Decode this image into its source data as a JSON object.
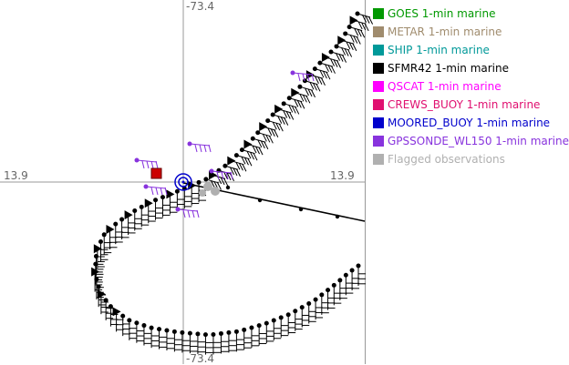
{
  "axes": {
    "top_label": "-73.4",
    "left_label": "13.9",
    "right_label": "13.9",
    "bottom_label": "-73.4"
  },
  "legend": [
    {
      "label": "GOES 1-min marine",
      "color": "#009900"
    },
    {
      "label": "METAR 1-min marine",
      "color": "#a08c6e"
    },
    {
      "label": "SHIP 1-min marine",
      "color": "#009999"
    },
    {
      "label": "SFMR42 1-min marine",
      "color": "#000000"
    },
    {
      "label": "QSCAT 1-min marine",
      "color": "#ff00ff"
    },
    {
      "label": "CREWS_BUOY 1-min marine",
      "color": "#e01070"
    },
    {
      "label": "MOORED_BUOY 1-min marine",
      "color": "#0000cc"
    },
    {
      "label": "GPSSONDE_WL150 1-min marine",
      "color": "#8833dd"
    },
    {
      "label": "Flagged observations",
      "color": "#b0b0b0"
    }
  ]
}
